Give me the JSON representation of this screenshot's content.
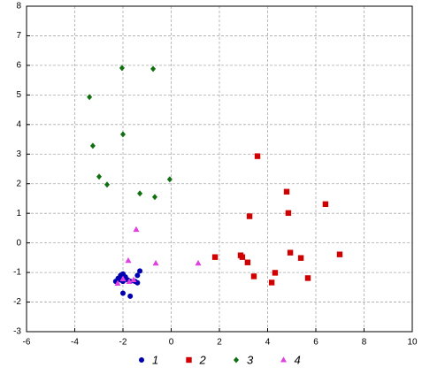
{
  "chart_data": {
    "type": "scatter",
    "xlim": [
      -6,
      10
    ],
    "xticks": [
      -6,
      -4,
      -2,
      0,
      2,
      4,
      6,
      8,
      10
    ],
    "ylim": [
      -3,
      8
    ],
    "yticks": [
      -3,
      -2,
      -1,
      0,
      1,
      2,
      3,
      4,
      5,
      6,
      7,
      8
    ],
    "grid": true,
    "legend": "bottom",
    "series": [
      {
        "name": "1",
        "color": "#0000b0",
        "marker": "circle",
        "x": [
          -2.0,
          -2.1,
          -2.2,
          -2.3,
          -2.1,
          -1.9,
          -1.7,
          -1.4,
          -1.3,
          -1.5,
          -2.0,
          -1.7,
          -1.4,
          -2.0,
          -1.8
        ],
        "values": [
          -1.05,
          -1.1,
          -1.2,
          -1.3,
          -1.25,
          -1.15,
          -1.3,
          -1.1,
          -0.95,
          -1.3,
          -1.7,
          -1.8,
          -1.35,
          -1.3,
          -1.25
        ]
      },
      {
        "name": "2",
        "color": "#d00000",
        "marker": "square",
        "x": [
          1.82,
          2.88,
          2.95,
          3.17,
          3.25,
          3.43,
          3.58,
          4.17,
          4.31,
          4.79,
          4.86,
          4.94,
          5.38,
          5.67,
          6.4,
          6.99
        ],
        "values": [
          -0.48,
          -0.42,
          -0.48,
          -0.66,
          0.9,
          -1.13,
          2.93,
          -1.34,
          -1.01,
          1.73,
          1.01,
          -0.33,
          -0.51,
          -1.19,
          1.31,
          -0.39
        ]
      },
      {
        "name": "3",
        "color": "#107010",
        "marker": "diamond",
        "x": [
          -2.04,
          -0.75,
          -3.39,
          -2.0,
          -3.25,
          -2.99,
          -2.66,
          -1.3,
          -0.68,
          -0.06
        ],
        "values": [
          5.91,
          5.88,
          4.93,
          3.67,
          3.28,
          2.24,
          1.97,
          1.67,
          1.55,
          2.15
        ]
      },
      {
        "name": "4",
        "color": "#e040e0",
        "marker": "triangle",
        "x": [
          -1.45,
          -1.78,
          -0.64,
          1.12,
          -2.0,
          -1.74,
          -1.56,
          -2.22
        ],
        "values": [
          0.45,
          -0.6,
          -0.69,
          -0.69,
          -1.22,
          -1.31,
          -1.25,
          -1.37
        ]
      }
    ]
  }
}
